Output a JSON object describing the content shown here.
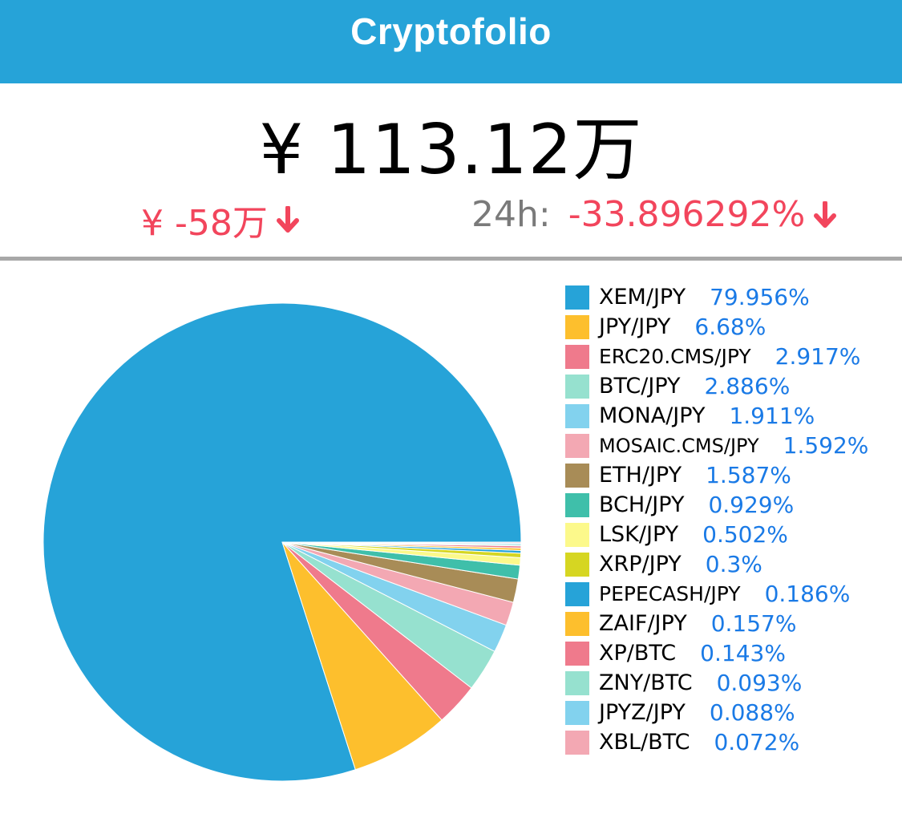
{
  "header": {
    "title": "Cryptofolio",
    "bg_color": "#26a3d8"
  },
  "summary": {
    "total_value": "¥ 113.12万",
    "change_amount": "¥ -58万",
    "change_24h_label": "24h:",
    "change_24h_percent": "-33.896292%",
    "change_direction_icon": "arrow-down-icon",
    "negative_color": "#f2455c"
  },
  "legend_items": [
    {
      "label": "XEM/JPY",
      "percent": "79.956%",
      "color": "#26a3d8"
    },
    {
      "label": "JPY/JPY",
      "percent": "6.68%",
      "color": "#fdbf2d"
    },
    {
      "label": "ERC20.CMS/JPY",
      "percent": "2.917%",
      "color": "#ef7a8c"
    },
    {
      "label": "BTC/JPY",
      "percent": "2.886%",
      "color": "#96e1cf"
    },
    {
      "label": "MONA/JPY",
      "percent": "1.911%",
      "color": "#82d2ee"
    },
    {
      "label": "MOSAIC.CMS/JPY",
      "percent": "1.592%",
      "color": "#f3a8b3"
    },
    {
      "label": "ETH/JPY",
      "percent": "1.587%",
      "color": "#a88c57"
    },
    {
      "label": "BCH/JPY",
      "percent": "0.929%",
      "color": "#3fbfaa"
    },
    {
      "label": "LSK/JPY",
      "percent": "0.502%",
      "color": "#fcf98b"
    },
    {
      "label": "XRP/JPY",
      "percent": "0.3%",
      "color": "#d6d622"
    },
    {
      "label": "PEPECASH/JPY",
      "percent": "0.186%",
      "color": "#26a3d8"
    },
    {
      "label": "ZAIF/JPY",
      "percent": "0.157%",
      "color": "#fdbf2d"
    },
    {
      "label": "XP/BTC",
      "percent": "0.143%",
      "color": "#ef7a8c"
    },
    {
      "label": "ZNY/BTC",
      "percent": "0.093%",
      "color": "#96e1cf"
    },
    {
      "label": "JPYZ/JPY",
      "percent": "0.088%",
      "color": "#82d2ee"
    },
    {
      "label": "XBL/BTC",
      "percent": "0.072%",
      "color": "#f3a8b3"
    }
  ],
  "chart_data": {
    "type": "pie",
    "categories": [
      "XEM/JPY",
      "JPY/JPY",
      "ERC20.CMS/JPY",
      "BTC/JPY",
      "MONA/JPY",
      "MOSAIC.CMS/JPY",
      "ETH/JPY",
      "BCH/JPY",
      "LSK/JPY",
      "XRP/JPY",
      "PEPECASH/JPY",
      "ZAIF/JPY",
      "XP/BTC",
      "ZNY/BTC",
      "JPYZ/JPY",
      "XBL/BTC"
    ],
    "values": [
      79.956,
      6.68,
      2.917,
      2.886,
      1.911,
      1.592,
      1.587,
      0.929,
      0.502,
      0.3,
      0.186,
      0.157,
      0.143,
      0.093,
      0.088,
      0.072
    ],
    "colors": [
      "#26a3d8",
      "#fdbf2d",
      "#ef7a8c",
      "#96e1cf",
      "#82d2ee",
      "#f3a8b3",
      "#a88c57",
      "#3fbfaa",
      "#fcf98b",
      "#d6d622",
      "#26a3d8",
      "#fdbf2d",
      "#ef7a8c",
      "#96e1cf",
      "#82d2ee",
      "#f3a8b3"
    ],
    "legend": "right"
  }
}
